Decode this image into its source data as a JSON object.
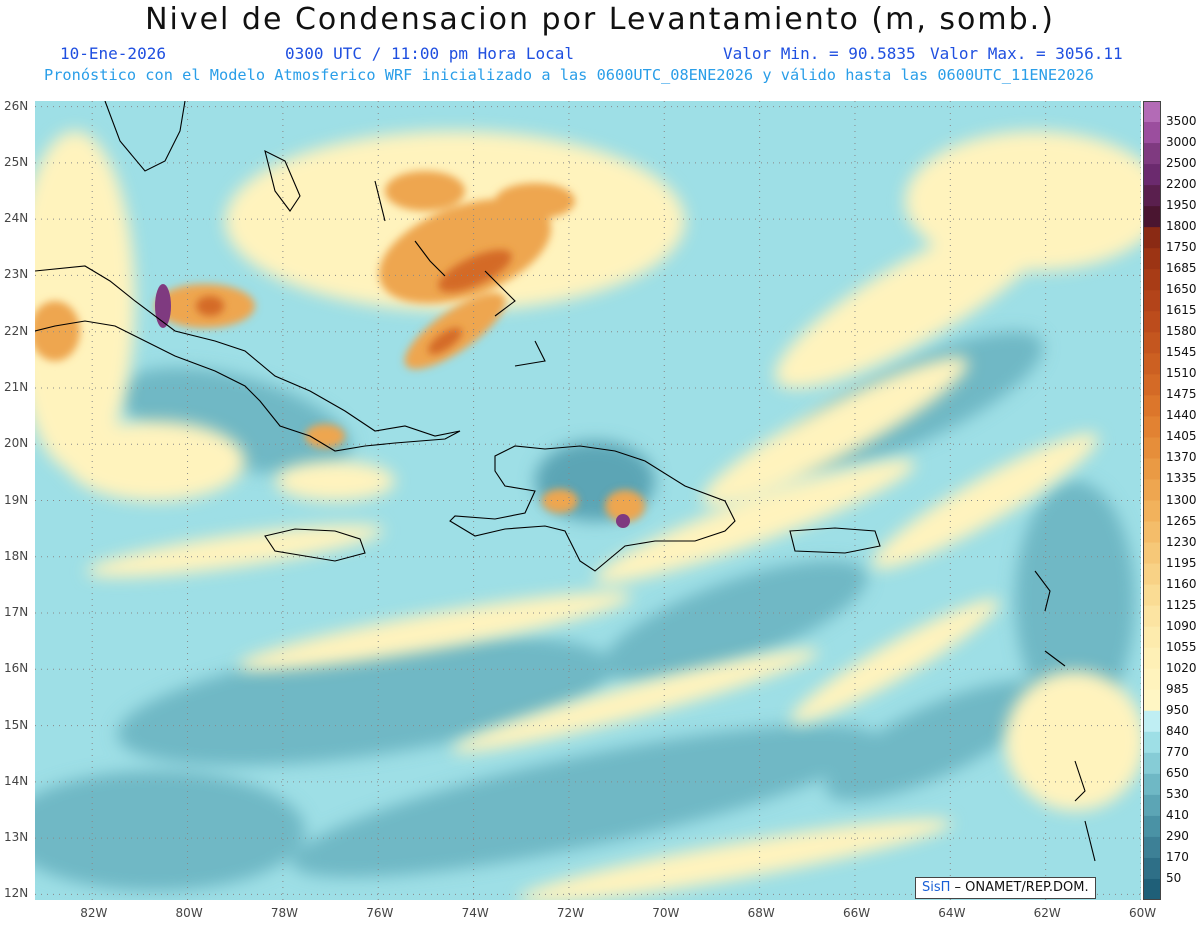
{
  "title": "Nivel de Condensacion por Levantamiento (m, somb.)",
  "date": "10-Ene-2026",
  "time": "0300 UTC / 11:00 pm Hora Local",
  "min_label": "Valor Min. = 90.5835",
  "max_label": "Valor Max. = 3056.11",
  "forecast_info": "Pronóstico con el Modelo Atmosferico WRF inicializado a las 0600UTC_08ENE2026 y válido hasta las  0600UTC_11ENE2026",
  "credit": {
    "brand": "SisΠ",
    "text": " – ONAMET/REP.DOM."
  },
  "lat_labels": [
    "26N",
    "25N",
    "24N",
    "23N",
    "22N",
    "21N",
    "20N",
    "19N",
    "18N",
    "17N",
    "16N",
    "15N",
    "14N",
    "13N",
    "12N"
  ],
  "lon_labels": [
    "82W",
    "80W",
    "78W",
    "76W",
    "74W",
    "72W",
    "70W",
    "68W",
    "66W",
    "64W",
    "62W",
    "60W"
  ],
  "legend": {
    "labels": [
      "3500",
      "3000",
      "2500",
      "2200",
      "1950",
      "1800",
      "1750",
      "1685",
      "1650",
      "1615",
      "1580",
      "1545",
      "1510",
      "1475",
      "1440",
      "1405",
      "1370",
      "1335",
      "1300",
      "1265",
      "1230",
      "1195",
      "1160",
      "1125",
      "1090",
      "1055",
      "1020",
      "985",
      "950",
      "840",
      "770",
      "650",
      "530",
      "410",
      "290",
      "170",
      "50"
    ],
    "colors": [
      "#b36bb6",
      "#9b4e9e",
      "#7f3a80",
      "#6b2a6e",
      "#5a1f4e",
      "#4a1530",
      "#8a2a14",
      "#9c3414",
      "#a83c16",
      "#b3441a",
      "#bc4c1c",
      "#c4561f",
      "#cc6022",
      "#d46a26",
      "#dc762b",
      "#e28232",
      "#e68e3a",
      "#ea9a44",
      "#eea650",
      "#f2b25c",
      "#f4bd6a",
      "#f6c878",
      "#f8d286",
      "#fadc94",
      "#fce4a2",
      "#fdebad",
      "#fef0b6",
      "#fff3bd",
      "#fff6c4",
      "#bfeef3",
      "#9edfe6",
      "#86ccd6",
      "#6fb8c5",
      "#5ca5b5",
      "#4a92a5",
      "#3d8096",
      "#2e6f87"
    ],
    "interval_colors": [
      "#b36bb6",
      "#9b4e9e",
      "#7f3a80",
      "#6b2a6e",
      "#5a1f4e",
      "#4a1530",
      "#8a2a14",
      "#9c3414",
      "#a83c16",
      "#b3441a",
      "#bc4c1c",
      "#c4561f",
      "#cc6022",
      "#d46a26",
      "#dc762b",
      "#e28232",
      "#e68e3a",
      "#ea9a44",
      "#eea650",
      "#f2b25c",
      "#f4bd6a",
      "#f6c878",
      "#f8d286",
      "#fadc94",
      "#fce4a2",
      "#fdebad",
      "#fef0b6",
      "#fff3bd",
      "#fff6c4",
      "#bfeef3",
      "#9edfe6",
      "#86ccd6",
      "#6fb8c5",
      "#5ca5b5",
      "#4a92a5",
      "#3d8096",
      "#2e6f87",
      "#1f5f78"
    ]
  },
  "map_extent": {
    "lon_min": -83.2,
    "lon_max": -60,
    "lat_min": 11.9,
    "lat_max": 26.1
  },
  "map_colors": {
    "low": "#6fb8c5",
    "mid": "#9edfe6",
    "light": "#bfeef3",
    "yellow": "#fff3bd",
    "orange": "#eea650",
    "dark_orange": "#d46a26",
    "purple": "#6b2a6e"
  }
}
